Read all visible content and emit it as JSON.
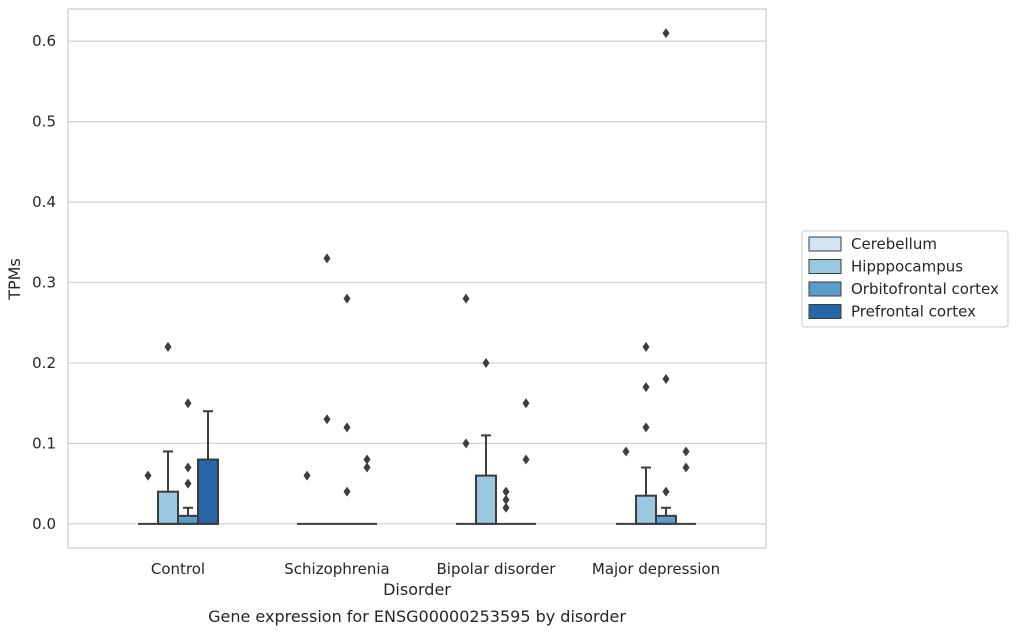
{
  "chart_data": {
    "type": "box",
    "title": "",
    "caption": "Gene expression for ENSG00000253595 by disorder",
    "xlabel": "Disorder",
    "ylabel": "TPMs",
    "ylim": [
      -0.03,
      0.64
    ],
    "yticks": [
      0.0,
      0.1,
      0.2,
      0.3,
      0.4,
      0.5,
      0.6
    ],
    "ytick_labels": [
      "0.0",
      "0.1",
      "0.2",
      "0.3",
      "0.4",
      "0.5",
      "0.6"
    ],
    "grid": true,
    "legend_position": "right",
    "categories": [
      "Control",
      "Schizophrenia",
      "Bipolar disorder",
      "Major depression"
    ],
    "series": [
      {
        "name": "Cerebellum",
        "color": "#d3e4f3",
        "boxes": [
          {
            "q1": 0,
            "median": 0,
            "q3": 0,
            "whisker_low": 0,
            "whisker_high": 0,
            "outliers": [
              0.06
            ]
          },
          {
            "q1": 0,
            "median": 0,
            "q3": 0,
            "whisker_low": 0,
            "whisker_high": 0,
            "outliers": [
              0.06
            ]
          },
          {
            "q1": 0,
            "median": 0,
            "q3": 0,
            "whisker_low": 0,
            "whisker_high": 0,
            "outliers": [
              0.1,
              0.28
            ]
          },
          {
            "q1": 0,
            "median": 0,
            "q3": 0,
            "whisker_low": 0,
            "whisker_high": 0,
            "outliers": [
              0.09
            ]
          }
        ]
      },
      {
        "name": "Hipppocampus",
        "color": "#9ac8e0",
        "boxes": [
          {
            "q1": 0,
            "median": 0,
            "q3": 0.04,
            "whisker_low": 0,
            "whisker_high": 0.09,
            "outliers": [
              0.22
            ]
          },
          {
            "q1": 0,
            "median": 0,
            "q3": 0,
            "whisker_low": 0,
            "whisker_high": 0,
            "outliers": [
              0.13,
              0.33
            ]
          },
          {
            "q1": 0,
            "median": 0,
            "q3": 0.06,
            "whisker_low": 0,
            "whisker_high": 0.11,
            "outliers": [
              0.2
            ]
          },
          {
            "q1": 0,
            "median": 0,
            "q3": 0.035,
            "whisker_low": 0,
            "whisker_high": 0.07,
            "outliers": [
              0.12,
              0.17,
              0.22
            ]
          }
        ]
      },
      {
        "name": "Orbitofrontal cortex",
        "color": "#5a9dcb",
        "boxes": [
          {
            "q1": 0,
            "median": 0,
            "q3": 0.01,
            "whisker_low": 0,
            "whisker_high": 0.02,
            "outliers": [
              0.05,
              0.07,
              0.15
            ]
          },
          {
            "q1": 0,
            "median": 0,
            "q3": 0,
            "whisker_low": 0,
            "whisker_high": 0,
            "outliers": [
              0.04,
              0.12,
              0.28
            ]
          },
          {
            "q1": 0,
            "median": 0,
            "q3": 0,
            "whisker_low": 0,
            "whisker_high": 0,
            "outliers": [
              0.02,
              0.03,
              0.04
            ]
          },
          {
            "q1": 0,
            "median": 0,
            "q3": 0.01,
            "whisker_low": 0,
            "whisker_high": 0.02,
            "outliers": [
              0.04,
              0.18,
              0.61
            ]
          }
        ]
      },
      {
        "name": "Prefrontal cortex",
        "color": "#2466a7",
        "boxes": [
          {
            "q1": 0,
            "median": 0,
            "q3": 0.08,
            "whisker_low": 0,
            "whisker_high": 0.14,
            "outliers": []
          },
          {
            "q1": 0,
            "median": 0,
            "q3": 0,
            "whisker_low": 0,
            "whisker_high": 0,
            "outliers": [
              0.07,
              0.08
            ]
          },
          {
            "q1": 0,
            "median": 0,
            "q3": 0,
            "whisker_low": 0,
            "whisker_high": 0,
            "outliers": [
              0.08,
              0.15
            ]
          },
          {
            "q1": 0,
            "median": 0,
            "q3": 0,
            "whisker_low": 0,
            "whisker_high": 0,
            "outliers": [
              0.07,
              0.09
            ]
          }
        ]
      }
    ],
    "style": {
      "grid_color": "#d4d4d4",
      "frame_color": "#cccccc",
      "box_edge_color": "#3d3d3d",
      "outlier_color": "#3d3d3d"
    }
  }
}
